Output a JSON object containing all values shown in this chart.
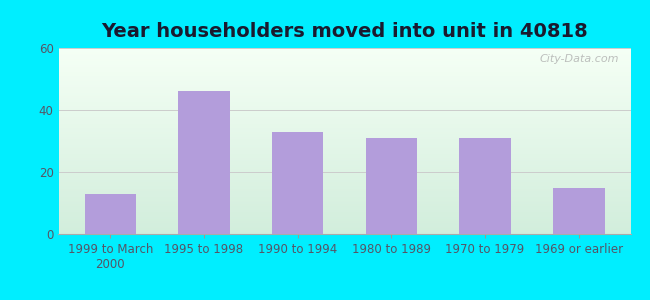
{
  "title": "Year householders moved into unit in 40818",
  "categories": [
    "1999 to March\n2000",
    "1995 to 1998",
    "1990 to 1994",
    "1980 to 1989",
    "1970 to 1979",
    "1969 or earlier"
  ],
  "values": [
    13,
    46,
    33,
    31,
    31,
    15
  ],
  "bar_color": "#b39ddb",
  "background_outer": "#00eeff",
  "background_inner_top": "#f5fff5",
  "background_inner_bottom": "#d4eedd",
  "ylim": [
    0,
    60
  ],
  "yticks": [
    0,
    20,
    40,
    60
  ],
  "grid_color": "#cccccc",
  "title_fontsize": 14,
  "tick_fontsize": 8.5,
  "title_color": "#1a1a2e",
  "tick_color": "#555566",
  "watermark": "City-Data.com"
}
